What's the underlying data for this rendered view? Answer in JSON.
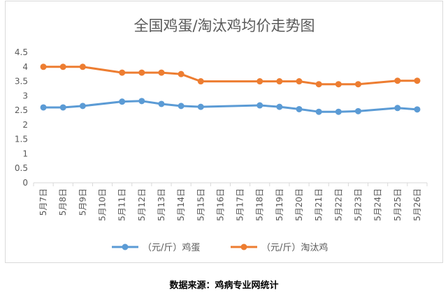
{
  "chart_data": {
    "type": "line",
    "title": "全国鸡蛋/淘汰鸡均价走势图",
    "categories": [
      "5月7日",
      "5月8日",
      "5月9日",
      "5月10日",
      "5月11日",
      "5月12日",
      "5月13日",
      "5月14日",
      "5月15日",
      "5月16日",
      "5月17日",
      "5月18日",
      "5月19日",
      "5月20日",
      "5月21日",
      "5月22日",
      "5月23日",
      "5月24日",
      "5月25日",
      "5月26日"
    ],
    "series": [
      {
        "name": "（元/斤）鸡蛋",
        "color": "#5b9bd5",
        "values": [
          2.6,
          2.6,
          2.65,
          null,
          2.8,
          2.82,
          2.72,
          2.65,
          2.62,
          null,
          null,
          2.67,
          2.62,
          2.54,
          2.45,
          2.45,
          2.47,
          null,
          2.58,
          2.53
        ]
      },
      {
        "name": "（元/斤）淘汰鸡",
        "color": "#ed7d31",
        "values": [
          4.0,
          4.0,
          4.0,
          null,
          3.8,
          3.8,
          3.8,
          3.75,
          3.5,
          null,
          null,
          3.5,
          3.5,
          3.5,
          3.4,
          3.4,
          3.4,
          null,
          3.52,
          3.52
        ]
      }
    ],
    "y_ticks": [
      "0",
      "0.5",
      "1",
      "1.5",
      "2",
      "2.5",
      "3",
      "3.5",
      "4",
      "4.5"
    ],
    "ylim": [
      0,
      4.5
    ],
    "grid": false,
    "legend_position": "bottom"
  },
  "source_note": "数据来源：鸡病专业网统计"
}
